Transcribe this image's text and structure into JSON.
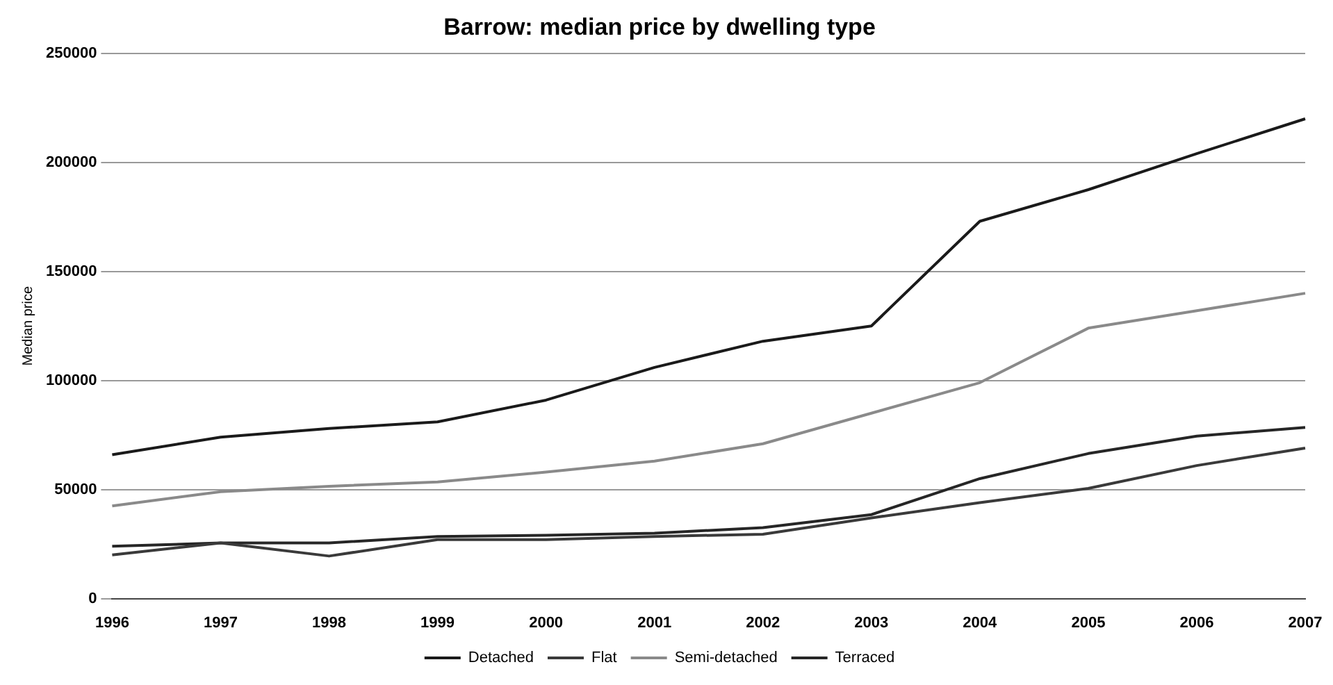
{
  "chart_data": {
    "type": "line",
    "title": "Barrow: median price by dwelling type",
    "ylabel": "Median price",
    "categories": [
      "1996",
      "1997",
      "1998",
      "1999",
      "2000",
      "2001",
      "2002",
      "2003",
      "2004",
      "2005",
      "2006",
      "2007"
    ],
    "series": [
      {
        "name": "Detached",
        "color": "#1a1a1a",
        "values": [
          66000,
          74000,
          78000,
          81000,
          91000,
          106000,
          118000,
          125000,
          173000,
          187500,
          204000,
          220000
        ]
      },
      {
        "name": "Flat",
        "color": "#3a3a3a",
        "values": [
          20000,
          25500,
          19500,
          27000,
          27000,
          28500,
          29500,
          37000,
          44000,
          50500,
          61000,
          69000
        ]
      },
      {
        "name": "Semi-detached",
        "color": "#8a8a8a",
        "values": [
          42500,
          49000,
          51500,
          53500,
          58000,
          63000,
          71000,
          85000,
          99000,
          124000,
          132000,
          140000
        ]
      },
      {
        "name": "Terraced",
        "color": "#262626",
        "values": [
          24000,
          25500,
          25500,
          28500,
          29000,
          30000,
          32500,
          38500,
          55000,
          66500,
          74500,
          78500
        ]
      }
    ],
    "ylim": [
      0,
      250000
    ],
    "yticks": [
      0,
      50000,
      100000,
      150000,
      200000,
      250000
    ],
    "grid": "y",
    "legend": "bottom",
    "marker": "none",
    "line_style": "solid"
  }
}
